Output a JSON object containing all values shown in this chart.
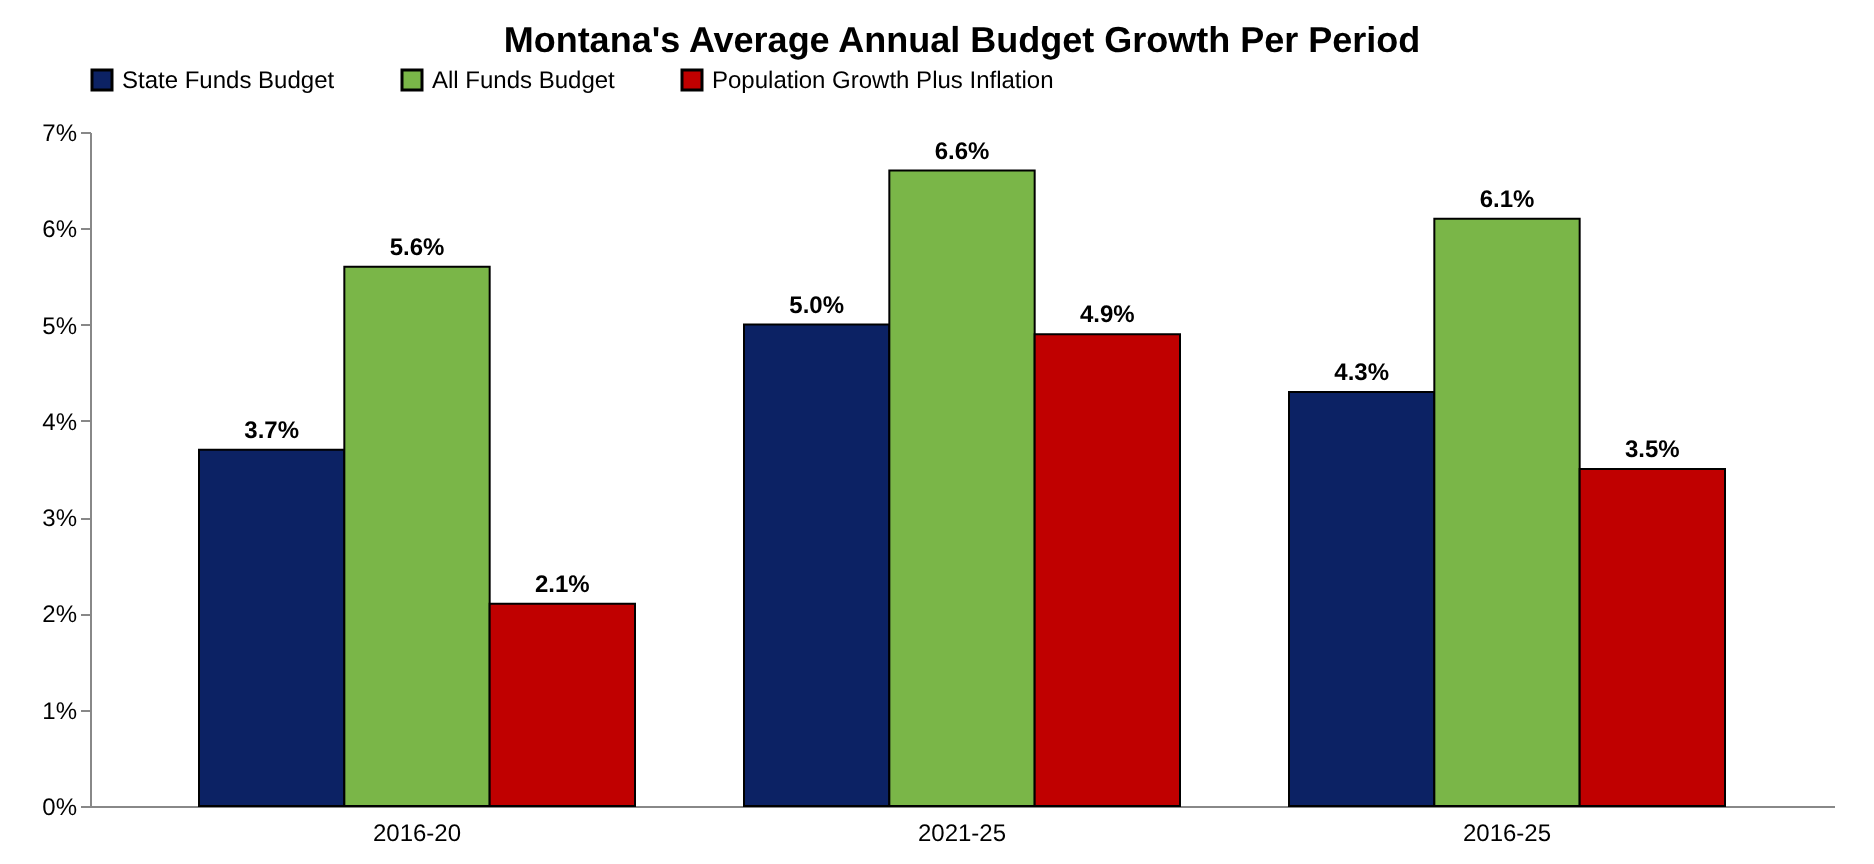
{
  "chart_data": {
    "type": "bar",
    "title": "Montana's Average Annual Budget Growth Per Period",
    "categories": [
      "2016-20",
      "2021-25",
      "2016-25"
    ],
    "series": [
      {
        "name": "State Funds Budget",
        "color": "#0c2264",
        "values": [
          3.7,
          5.0,
          4.3
        ],
        "value_labels": [
          "3.7%",
          "5.0%",
          "4.3%"
        ]
      },
      {
        "name": "All Funds Budget",
        "color": "#7ab648",
        "values": [
          5.6,
          6.6,
          6.1
        ],
        "value_labels": [
          "5.6%",
          "6.6%",
          "6.1%"
        ]
      },
      {
        "name": "Population Growth Plus Inflation",
        "color": "#c00000",
        "values": [
          2.1,
          4.9,
          3.5
        ],
        "value_labels": [
          "2.1%",
          "4.9%",
          "3.5%"
        ]
      }
    ],
    "ylim": [
      0,
      7
    ],
    "yticks": [
      {
        "value": 0,
        "label": "0%"
      },
      {
        "value": 1,
        "label": "1%"
      },
      {
        "value": 2,
        "label": "2%"
      },
      {
        "value": 3,
        "label": "3%"
      },
      {
        "value": 4,
        "label": "4%"
      },
      {
        "value": 5,
        "label": "5%"
      },
      {
        "value": 6,
        "label": "6%"
      },
      {
        "value": 7,
        "label": "7%"
      }
    ],
    "grid": false,
    "legend": "top"
  }
}
